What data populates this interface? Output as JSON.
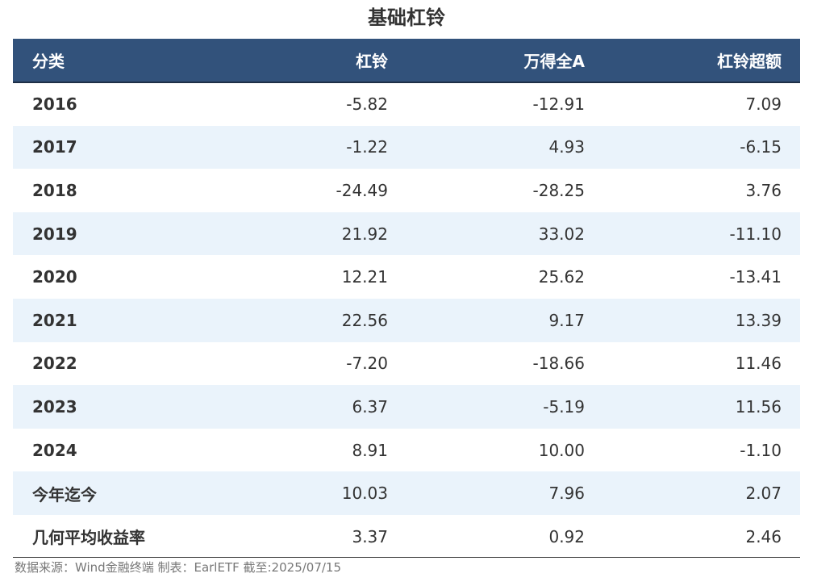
{
  "chart_data": {
    "type": "table",
    "title": "基础杠铃",
    "columns": [
      "分类",
      "杠铃",
      "万得全A",
      "杠铃超额"
    ],
    "rows": [
      {
        "label": "2016",
        "values": [
          "-5.82",
          "-12.91",
          "7.09"
        ]
      },
      {
        "label": "2017",
        "values": [
          "-1.22",
          "4.93",
          "-6.15"
        ]
      },
      {
        "label": "2018",
        "values": [
          "-24.49",
          "-28.25",
          "3.76"
        ]
      },
      {
        "label": "2019",
        "values": [
          "21.92",
          "33.02",
          "-11.10"
        ]
      },
      {
        "label": "2020",
        "values": [
          "12.21",
          "25.62",
          "-13.41"
        ]
      },
      {
        "label": "2021",
        "values": [
          "22.56",
          "9.17",
          "13.39"
        ]
      },
      {
        "label": "2022",
        "values": [
          "-7.20",
          "-18.66",
          "11.46"
        ]
      },
      {
        "label": "2023",
        "values": [
          "6.37",
          "-5.19",
          "11.56"
        ]
      },
      {
        "label": "2024",
        "values": [
          "8.91",
          "10.00",
          "-1.10"
        ]
      },
      {
        "label": "今年迄今",
        "values": [
          "10.03",
          "7.96",
          "2.07"
        ]
      },
      {
        "label": "几何平均收益率",
        "values": [
          "3.37",
          "0.92",
          "2.46"
        ]
      }
    ],
    "source": "数据来源：Wind金融终端 制表：EarlETF 截至:2025/07/15"
  },
  "colors": {
    "header_bg": "#32527b",
    "header_text": "#ffffff",
    "stripe": "#eaf3fb",
    "text": "#333333"
  }
}
